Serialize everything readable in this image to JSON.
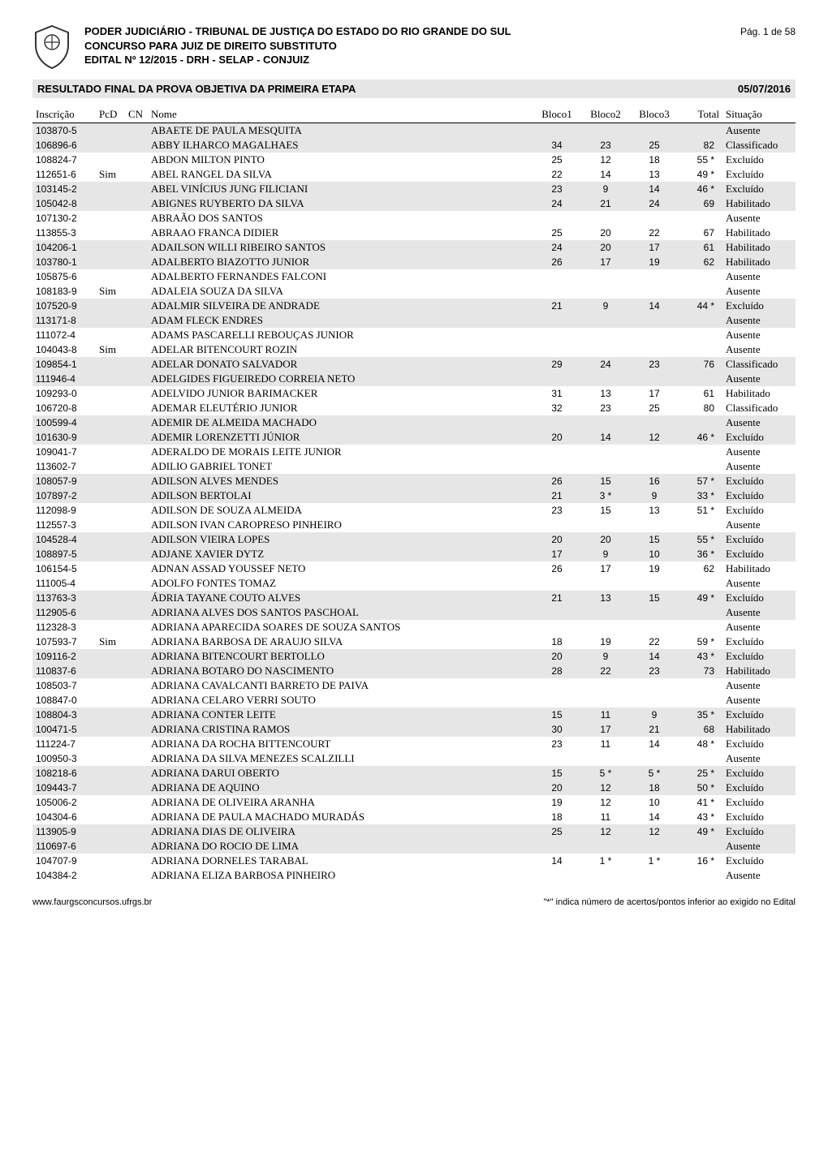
{
  "header": {
    "line1": "PODER JUDICIÁRIO - TRIBUNAL DE JUSTIÇA DO ESTADO DO RIO GRANDE DO SUL",
    "line2": "CONCURSO PARA JUIZ DE DIREITO SUBSTITUTO",
    "line3": "EDITAL Nº 12/2015 - DRH - SELAP - CONJUIZ",
    "page_label": "Pág. 1 de 58"
  },
  "banner": {
    "title": "RESULTADO FINAL DA PROVA OBJETIVA DA PRIMEIRA ETAPA",
    "date": "05/07/2016"
  },
  "columns": {
    "inscricao": "Inscrição",
    "pcd": "PcD",
    "cn": "CN",
    "nome": "Nome",
    "bloco1": "Bloco1",
    "bloco2": "Bloco2",
    "bloco3": "Bloco3",
    "total": "Total",
    "situacao": "Situação"
  },
  "rows": [
    {
      "shade": true,
      "insc": "103870-5",
      "pcd": "",
      "cn": "",
      "nome": "ABAETE DE PAULA MESQUITA",
      "b1": "",
      "b2": "",
      "b3": "",
      "tot": "",
      "sit": "Ausente"
    },
    {
      "shade": true,
      "insc": "106896-6",
      "pcd": "",
      "cn": "",
      "nome": "ABBY ILHARCO MAGALHAES",
      "b1": "34",
      "b2": "23",
      "b3": "25",
      "tot": "82",
      "sit": "Classificado"
    },
    {
      "shade": false,
      "insc": "108824-7",
      "pcd": "",
      "cn": "",
      "nome": "ABDON MILTON PINTO",
      "b1": "25",
      "b2": "12",
      "b3": "18",
      "tot": "55 *",
      "sit": "Excluído"
    },
    {
      "shade": false,
      "insc": "112651-6",
      "pcd": "Sim",
      "cn": "",
      "nome": "ABEL RANGEL DA SILVA",
      "b1": "22",
      "b2": "14",
      "b3": "13",
      "tot": "49 *",
      "sit": "Excluído"
    },
    {
      "shade": true,
      "insc": "103145-2",
      "pcd": "",
      "cn": "",
      "nome": "ABEL VINÍCIUS JUNG FILICIANI",
      "b1": "23",
      "b2": "9",
      "b3": "14",
      "tot": "46 *",
      "sit": "Excluído"
    },
    {
      "shade": true,
      "insc": "105042-8",
      "pcd": "",
      "cn": "",
      "nome": "ABIGNES RUYBERTO DA SILVA",
      "b1": "24",
      "b2": "21",
      "b3": "24",
      "tot": "69",
      "sit": "Habilitado"
    },
    {
      "shade": false,
      "insc": "107130-2",
      "pcd": "",
      "cn": "",
      "nome": "ABRAÃO DOS SANTOS",
      "b1": "",
      "b2": "",
      "b3": "",
      "tot": "",
      "sit": "Ausente"
    },
    {
      "shade": false,
      "insc": "113855-3",
      "pcd": "",
      "cn": "",
      "nome": "ABRAAO FRANCA DIDIER",
      "b1": "25",
      "b2": "20",
      "b3": "22",
      "tot": "67",
      "sit": "Habilitado"
    },
    {
      "shade": true,
      "insc": "104206-1",
      "pcd": "",
      "cn": "",
      "nome": "ADAILSON WILLI RIBEIRO SANTOS",
      "b1": "24",
      "b2": "20",
      "b3": "17",
      "tot": "61",
      "sit": "Habilitado"
    },
    {
      "shade": true,
      "insc": "103780-1",
      "pcd": "",
      "cn": "",
      "nome": "ADALBERTO BIAZOTTO JUNIOR",
      "b1": "26",
      "b2": "17",
      "b3": "19",
      "tot": "62",
      "sit": "Habilitado"
    },
    {
      "shade": false,
      "insc": "105875-6",
      "pcd": "",
      "cn": "",
      "nome": "ADALBERTO FERNANDES FALCONI",
      "b1": "",
      "b2": "",
      "b3": "",
      "tot": "",
      "sit": "Ausente"
    },
    {
      "shade": false,
      "insc": "108183-9",
      "pcd": "Sim",
      "cn": "",
      "nome": "ADALEIA SOUZA DA SILVA",
      "b1": "",
      "b2": "",
      "b3": "",
      "tot": "",
      "sit": "Ausente"
    },
    {
      "shade": true,
      "insc": "107520-9",
      "pcd": "",
      "cn": "",
      "nome": "ADALMIR SILVEIRA DE ANDRADE",
      "b1": "21",
      "b2": "9",
      "b3": "14",
      "tot": "44 *",
      "sit": "Excluído"
    },
    {
      "shade": true,
      "insc": "113171-8",
      "pcd": "",
      "cn": "",
      "nome": "ADAM FLECK ENDRES",
      "b1": "",
      "b2": "",
      "b3": "",
      "tot": "",
      "sit": "Ausente"
    },
    {
      "shade": false,
      "insc": "111072-4",
      "pcd": "",
      "cn": "",
      "nome": "ADAMS PASCARELLI REBOUÇAS JUNIOR",
      "b1": "",
      "b2": "",
      "b3": "",
      "tot": "",
      "sit": "Ausente"
    },
    {
      "shade": false,
      "insc": "104043-8",
      "pcd": "Sim",
      "cn": "",
      "nome": "ADELAR BITENCOURT ROZIN",
      "b1": "",
      "b2": "",
      "b3": "",
      "tot": "",
      "sit": "Ausente"
    },
    {
      "shade": true,
      "insc": "109854-1",
      "pcd": "",
      "cn": "",
      "nome": "ADELAR DONATO SALVADOR",
      "b1": "29",
      "b2": "24",
      "b3": "23",
      "tot": "76",
      "sit": "Classificado"
    },
    {
      "shade": true,
      "insc": "111946-4",
      "pcd": "",
      "cn": "",
      "nome": "ADELGIDES FIGUEIREDO CORREIA NETO",
      "b1": "",
      "b2": "",
      "b3": "",
      "tot": "",
      "sit": "Ausente"
    },
    {
      "shade": false,
      "insc": "109293-0",
      "pcd": "",
      "cn": "",
      "nome": "ADELVIDO JUNIOR BARIMACKER",
      "b1": "31",
      "b2": "13",
      "b3": "17",
      "tot": "61",
      "sit": "Habilitado"
    },
    {
      "shade": false,
      "insc": "106720-8",
      "pcd": "",
      "cn": "",
      "nome": "ADEMAR ELEUTÉRIO JUNIOR",
      "b1": "32",
      "b2": "23",
      "b3": "25",
      "tot": "80",
      "sit": "Classificado"
    },
    {
      "shade": true,
      "insc": "100599-4",
      "pcd": "",
      "cn": "",
      "nome": "ADEMIR DE ALMEIDA MACHADO",
      "b1": "",
      "b2": "",
      "b3": "",
      "tot": "",
      "sit": "Ausente"
    },
    {
      "shade": true,
      "insc": "101630-9",
      "pcd": "",
      "cn": "",
      "nome": "ADEMIR LORENZETTI JÚNIOR",
      "b1": "20",
      "b2": "14",
      "b3": "12",
      "tot": "46 *",
      "sit": "Excluído"
    },
    {
      "shade": false,
      "insc": "109041-7",
      "pcd": "",
      "cn": "",
      "nome": "ADERALDO DE MORAIS LEITE JUNIOR",
      "b1": "",
      "b2": "",
      "b3": "",
      "tot": "",
      "sit": "Ausente"
    },
    {
      "shade": false,
      "insc": "113602-7",
      "pcd": "",
      "cn": "",
      "nome": "ADILIO GABRIEL TONET",
      "b1": "",
      "b2": "",
      "b3": "",
      "tot": "",
      "sit": "Ausente"
    },
    {
      "shade": true,
      "insc": "108057-9",
      "pcd": "",
      "cn": "",
      "nome": "ADILSON ALVES MENDES",
      "b1": "26",
      "b2": "15",
      "b3": "16",
      "tot": "57 *",
      "sit": "Excluído"
    },
    {
      "shade": true,
      "insc": "107897-2",
      "pcd": "",
      "cn": "",
      "nome": "ADILSON BERTOLAI",
      "b1": "21",
      "b2": "3 *",
      "b3": "9",
      "tot": "33 *",
      "sit": "Excluído"
    },
    {
      "shade": false,
      "insc": "112098-9",
      "pcd": "",
      "cn": "",
      "nome": "ADILSON DE SOUZA ALMEIDA",
      "b1": "23",
      "b2": "15",
      "b3": "13",
      "tot": "51 *",
      "sit": "Excluído"
    },
    {
      "shade": false,
      "insc": "112557-3",
      "pcd": "",
      "cn": "",
      "nome": "ADILSON IVAN CAROPRESO PINHEIRO",
      "b1": "",
      "b2": "",
      "b3": "",
      "tot": "",
      "sit": "Ausente"
    },
    {
      "shade": true,
      "insc": "104528-4",
      "pcd": "",
      "cn": "",
      "nome": "ADILSON VIEIRA LOPES",
      "b1": "20",
      "b2": "20",
      "b3": "15",
      "tot": "55 *",
      "sit": "Excluído"
    },
    {
      "shade": true,
      "insc": "108897-5",
      "pcd": "",
      "cn": "",
      "nome": "ADJANE XAVIER DYTZ",
      "b1": "17",
      "b2": "9",
      "b3": "10",
      "tot": "36 *",
      "sit": "Excluído"
    },
    {
      "shade": false,
      "insc": "106154-5",
      "pcd": "",
      "cn": "",
      "nome": "ADNAN ASSAD YOUSSEF NETO",
      "b1": "26",
      "b2": "17",
      "b3": "19",
      "tot": "62",
      "sit": "Habilitado"
    },
    {
      "shade": false,
      "insc": "111005-4",
      "pcd": "",
      "cn": "",
      "nome": "ADOLFO FONTES TOMAZ",
      "b1": "",
      "b2": "",
      "b3": "",
      "tot": "",
      "sit": "Ausente"
    },
    {
      "shade": true,
      "insc": "113763-3",
      "pcd": "",
      "cn": "",
      "nome": "ÁDRIA TAYANE COUTO ALVES",
      "b1": "21",
      "b2": "13",
      "b3": "15",
      "tot": "49 *",
      "sit": "Excluído"
    },
    {
      "shade": true,
      "insc": "112905-6",
      "pcd": "",
      "cn": "",
      "nome": "ADRIANA ALVES DOS SANTOS PASCHOAL",
      "b1": "",
      "b2": "",
      "b3": "",
      "tot": "",
      "sit": "Ausente"
    },
    {
      "shade": false,
      "insc": "112328-3",
      "pcd": "",
      "cn": "",
      "nome": "ADRIANA APARECIDA SOARES DE SOUZA SANTOS",
      "b1": "",
      "b2": "",
      "b3": "",
      "tot": "",
      "sit": "Ausente"
    },
    {
      "shade": false,
      "insc": "107593-7",
      "pcd": "Sim",
      "cn": "",
      "nome": "ADRIANA BARBOSA DE ARAUJO SILVA",
      "b1": "18",
      "b2": "19",
      "b3": "22",
      "tot": "59 *",
      "sit": "Excluído"
    },
    {
      "shade": true,
      "insc": "109116-2",
      "pcd": "",
      "cn": "",
      "nome": "ADRIANA BITENCOURT BERTOLLO",
      "b1": "20",
      "b2": "9",
      "b3": "14",
      "tot": "43 *",
      "sit": "Excluído"
    },
    {
      "shade": true,
      "insc": "110837-6",
      "pcd": "",
      "cn": "",
      "nome": "ADRIANA BOTARO DO NASCIMENTO",
      "b1": "28",
      "b2": "22",
      "b3": "23",
      "tot": "73",
      "sit": "Habilitado"
    },
    {
      "shade": false,
      "insc": "108503-7",
      "pcd": "",
      "cn": "",
      "nome": "ADRIANA CAVALCANTI BARRETO DE PAIVA",
      "b1": "",
      "b2": "",
      "b3": "",
      "tot": "",
      "sit": "Ausente"
    },
    {
      "shade": false,
      "insc": "108847-0",
      "pcd": "",
      "cn": "",
      "nome": "ADRIANA CELARO VERRI SOUTO",
      "b1": "",
      "b2": "",
      "b3": "",
      "tot": "",
      "sit": "Ausente"
    },
    {
      "shade": true,
      "insc": "108804-3",
      "pcd": "",
      "cn": "",
      "nome": "ADRIANA CONTER LEITE",
      "b1": "15",
      "b2": "11",
      "b3": "9",
      "tot": "35 *",
      "sit": "Excluído"
    },
    {
      "shade": true,
      "insc": "100471-5",
      "pcd": "",
      "cn": "",
      "nome": "ADRIANA CRISTINA RAMOS",
      "b1": "30",
      "b2": "17",
      "b3": "21",
      "tot": "68",
      "sit": "Habilitado"
    },
    {
      "shade": false,
      "insc": "111224-7",
      "pcd": "",
      "cn": "",
      "nome": "ADRIANA DA ROCHA BITTENCOURT",
      "b1": "23",
      "b2": "11",
      "b3": "14",
      "tot": "48 *",
      "sit": "Excluído"
    },
    {
      "shade": false,
      "insc": "100950-3",
      "pcd": "",
      "cn": "",
      "nome": "ADRIANA DA SILVA MENEZES SCALZILLI",
      "b1": "",
      "b2": "",
      "b3": "",
      "tot": "",
      "sit": "Ausente"
    },
    {
      "shade": true,
      "insc": "108218-6",
      "pcd": "",
      "cn": "",
      "nome": "ADRIANA DARUI OBERTO",
      "b1": "15",
      "b2": "5 *",
      "b3": "5 *",
      "tot": "25 *",
      "sit": "Excluído"
    },
    {
      "shade": true,
      "insc": "109443-7",
      "pcd": "",
      "cn": "",
      "nome": "ADRIANA DE AQUINO",
      "b1": "20",
      "b2": "12",
      "b3": "18",
      "tot": "50 *",
      "sit": "Excluído"
    },
    {
      "shade": false,
      "insc": "105006-2",
      "pcd": "",
      "cn": "",
      "nome": "ADRIANA DE OLIVEIRA ARANHA",
      "b1": "19",
      "b2": "12",
      "b3": "10",
      "tot": "41 *",
      "sit": "Excluído"
    },
    {
      "shade": false,
      "insc": "104304-6",
      "pcd": "",
      "cn": "",
      "nome": "ADRIANA DE PAULA MACHADO MURADÁS",
      "b1": "18",
      "b2": "11",
      "b3": "14",
      "tot": "43 *",
      "sit": "Excluído"
    },
    {
      "shade": true,
      "insc": "113905-9",
      "pcd": "",
      "cn": "",
      "nome": "ADRIANA DIAS DE OLIVEIRA",
      "b1": "25",
      "b2": "12",
      "b3": "12",
      "tot": "49 *",
      "sit": "Excluído"
    },
    {
      "shade": true,
      "insc": "110697-6",
      "pcd": "",
      "cn": "",
      "nome": "ADRIANA DO ROCIO DE LIMA",
      "b1": "",
      "b2": "",
      "b3": "",
      "tot": "",
      "sit": "Ausente"
    },
    {
      "shade": false,
      "insc": "104707-9",
      "pcd": "",
      "cn": "",
      "nome": "ADRIANA DORNELES TARABAL",
      "b1": "14",
      "b2": "1 *",
      "b3": "1 *",
      "tot": "16 *",
      "sit": "Excluído"
    },
    {
      "shade": false,
      "insc": "104384-2",
      "pcd": "",
      "cn": "",
      "nome": "ADRIANA ELIZA BARBOSA PINHEIRO",
      "b1": "",
      "b2": "",
      "b3": "",
      "tot": "",
      "sit": "Ausente"
    }
  ],
  "footer": {
    "left": "www.faurgsconcursos.ufrgs.br",
    "right": "\"*\" indica número de acertos/pontos inferior ao exigido no Edital"
  },
  "colors": {
    "shade_bg": "#e6e6e6",
    "text": "#000000",
    "page_bg": "#ffffff"
  }
}
